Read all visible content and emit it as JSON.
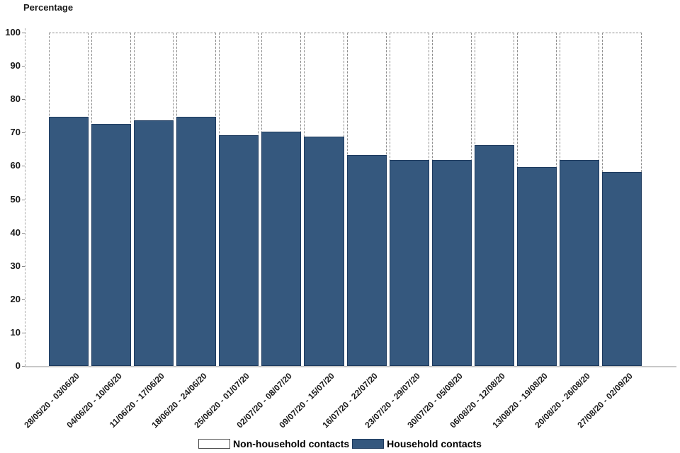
{
  "chart_data": {
    "type": "bar",
    "stacked": true,
    "title": "Percentage",
    "ylabel": "Percentage",
    "xlabel": "",
    "ylim": [
      0,
      100
    ],
    "yticks": [
      0,
      10,
      20,
      30,
      40,
      50,
      60,
      70,
      80,
      90,
      100
    ],
    "grid": false,
    "legend_position": "bottom",
    "categories": [
      "28/05/20 - 03/06/20",
      "04/06/20 - 10/06/20",
      "11/06/20 - 17/06/20",
      "18/06/20 - 24/06/20",
      "25/06/20 - 01/07/20",
      "02/07/20 - 08/07/20",
      "09/07/20 - 15/07/20",
      "16/07/20 - 22/07/20",
      "23/07/20 - 29/07/20",
      "30/07/20 - 05/08/20",
      "06/08/20 - 12/08/20",
      "13/08/20 - 19/08/20",
      "20/08/20 - 26/08/20",
      "27/08/20 - 02/09/20"
    ],
    "series": [
      {
        "name": "Household contacts",
        "color": "#35587e",
        "values": [
          75,
          73,
          74,
          75,
          69.5,
          70.5,
          69,
          63.5,
          62,
          62,
          66.5,
          60,
          62,
          58.5
        ]
      },
      {
        "name": "Non-household contacts",
        "color": "#ffffff",
        "values": [
          25,
          27,
          26,
          25,
          30.5,
          29.5,
          31,
          36.5,
          38,
          38,
          33.5,
          40,
          38,
          41.5
        ]
      }
    ]
  },
  "legend": {
    "items": [
      {
        "label": "Non-household contacts",
        "color": "#ffffff"
      },
      {
        "label": "Household contacts",
        "color": "#35587e"
      }
    ]
  }
}
